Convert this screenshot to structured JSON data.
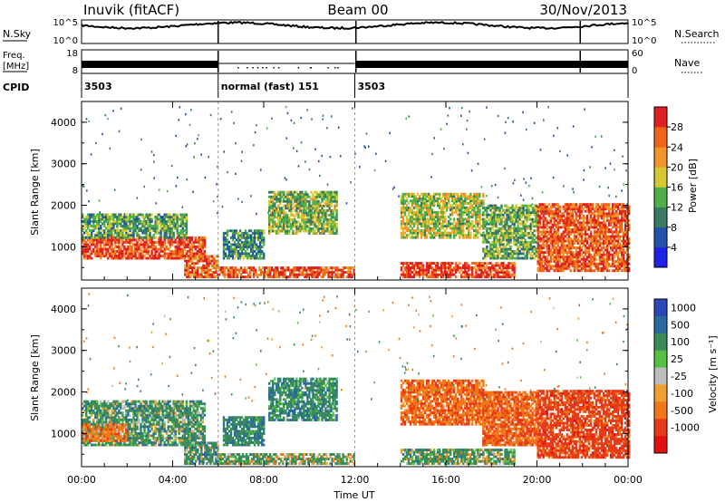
{
  "header": {
    "station": "Inuvik (fitACF)",
    "beam": "Beam 00",
    "date": "30/Nov/2013"
  },
  "strips": {
    "nsky_label": "N.Sky",
    "nsky_ticks": [
      "10^5",
      "10^0"
    ],
    "nsearch_label": "N.Search",
    "freq_label_1": "Freq.",
    "freq_label_2": "[MHz]",
    "freq_ticks": [
      "18",
      "8"
    ],
    "nave_label": "Nave",
    "nave_ticks": [
      "60",
      "0"
    ],
    "cpid_label": "CPID",
    "cpid_segments": [
      {
        "start_hour": 0,
        "end_hour": 6,
        "label": "3503"
      },
      {
        "start_hour": 6,
        "end_hour": 12,
        "label": "normal (fast) 151"
      },
      {
        "start_hour": 12,
        "end_hour": 24,
        "label": "3503"
      }
    ]
  },
  "axes": {
    "ylabel": "Slant Range [km]",
    "xlabel": "Time UT",
    "yticks": [
      "1000",
      "2000",
      "3000",
      "4000"
    ],
    "xticks": [
      "00:00",
      "04:00",
      "08:00",
      "12:00",
      "16:00",
      "20:00",
      "00:00"
    ]
  },
  "colorbars": {
    "power_label": "Power [dB]",
    "power_ticks": [
      "4",
      "8",
      "12",
      "16",
      "20",
      "24",
      "28"
    ],
    "power_colors": [
      "#1f22e6",
      "#2452a8",
      "#3a7a62",
      "#4fb04a",
      "#d6c830",
      "#f0962a",
      "#f06418",
      "#e02020"
    ],
    "velocity_label": "Velocity [m s⁻¹]",
    "velocity_ticks": [
      "1000",
      "500",
      "100",
      "25",
      "-25",
      "-100",
      "-500",
      "-1000"
    ],
    "velocity_colors": [
      "#2a46b8",
      "#2a6aa0",
      "#3a8a5a",
      "#58c040",
      "#bdbdbd",
      "#f0a030",
      "#f07818",
      "#e83a18",
      "#e01010"
    ]
  },
  "chart_data": [
    {
      "type": "heatmap",
      "title": "Power",
      "xlabel": "Time UT",
      "ylabel": "Slant Range [km]",
      "xlim": [
        0,
        24
      ],
      "ylim": [
        200,
        4500
      ],
      "colorbar": {
        "label": "Power [dB]",
        "range": [
          0,
          30
        ]
      },
      "blobs": [
        {
          "t0": 0.0,
          "t1": 5.4,
          "r0": 700,
          "r1": 1200,
          "level": 26
        },
        {
          "t0": 0.0,
          "t1": 4.6,
          "r0": 1200,
          "r1": 1800,
          "level": 12
        },
        {
          "t0": 4.5,
          "t1": 6.0,
          "r0": 250,
          "r1": 800,
          "level": 24
        },
        {
          "t0": 6.0,
          "t1": 12.0,
          "r0": 250,
          "r1": 500,
          "level": 25
        },
        {
          "t0": 6.2,
          "t1": 8.0,
          "r0": 700,
          "r1": 1400,
          "level": 10
        },
        {
          "t0": 8.2,
          "t1": 11.2,
          "r0": 1300,
          "r1": 2300,
          "level": 14
        },
        {
          "t0": 14.0,
          "t1": 19.0,
          "r0": 250,
          "r1": 600,
          "level": 27
        },
        {
          "t0": 14.0,
          "t1": 17.6,
          "r0": 1200,
          "r1": 2300,
          "level": 16
        },
        {
          "t0": 17.6,
          "t1": 20.0,
          "r0": 700,
          "r1": 2000,
          "level": 13
        },
        {
          "t0": 20.0,
          "t1": 24.0,
          "r0": 400,
          "r1": 2000,
          "level": 25
        }
      ]
    },
    {
      "type": "heatmap",
      "title": "Velocity",
      "xlabel": "Time UT",
      "ylabel": "Slant Range [km]",
      "xlim": [
        0,
        24
      ],
      "ylim": [
        200,
        4500
      ],
      "colorbar": {
        "label": "Velocity [m s⁻¹]",
        "range": [
          -1000,
          1000
        ]
      },
      "blobs": [
        {
          "t0": 0.0,
          "t1": 5.4,
          "r0": 700,
          "r1": 1800,
          "level": 250
        },
        {
          "t0": 0.0,
          "t1": 2.0,
          "r0": 800,
          "r1": 1200,
          "level": -300
        },
        {
          "t0": 4.5,
          "t1": 6.0,
          "r0": 250,
          "r1": 800,
          "level": 300
        },
        {
          "t0": 6.0,
          "t1": 12.0,
          "r0": 250,
          "r1": 500,
          "level": 150
        },
        {
          "t0": 6.2,
          "t1": 8.0,
          "r0": 700,
          "r1": 1400,
          "level": 400
        },
        {
          "t0": 8.2,
          "t1": 11.2,
          "r0": 1300,
          "r1": 2300,
          "level": 350
        },
        {
          "t0": 14.0,
          "t1": 19.0,
          "r0": 250,
          "r1": 600,
          "level": 200
        },
        {
          "t0": 14.0,
          "t1": 17.6,
          "r0": 1200,
          "r1": 2300,
          "level": -400
        },
        {
          "t0": 17.6,
          "t1": 20.0,
          "r0": 700,
          "r1": 2000,
          "level": -450
        },
        {
          "t0": 20.0,
          "t1": 24.0,
          "r0": 400,
          "r1": 2000,
          "level": -700
        }
      ]
    }
  ]
}
